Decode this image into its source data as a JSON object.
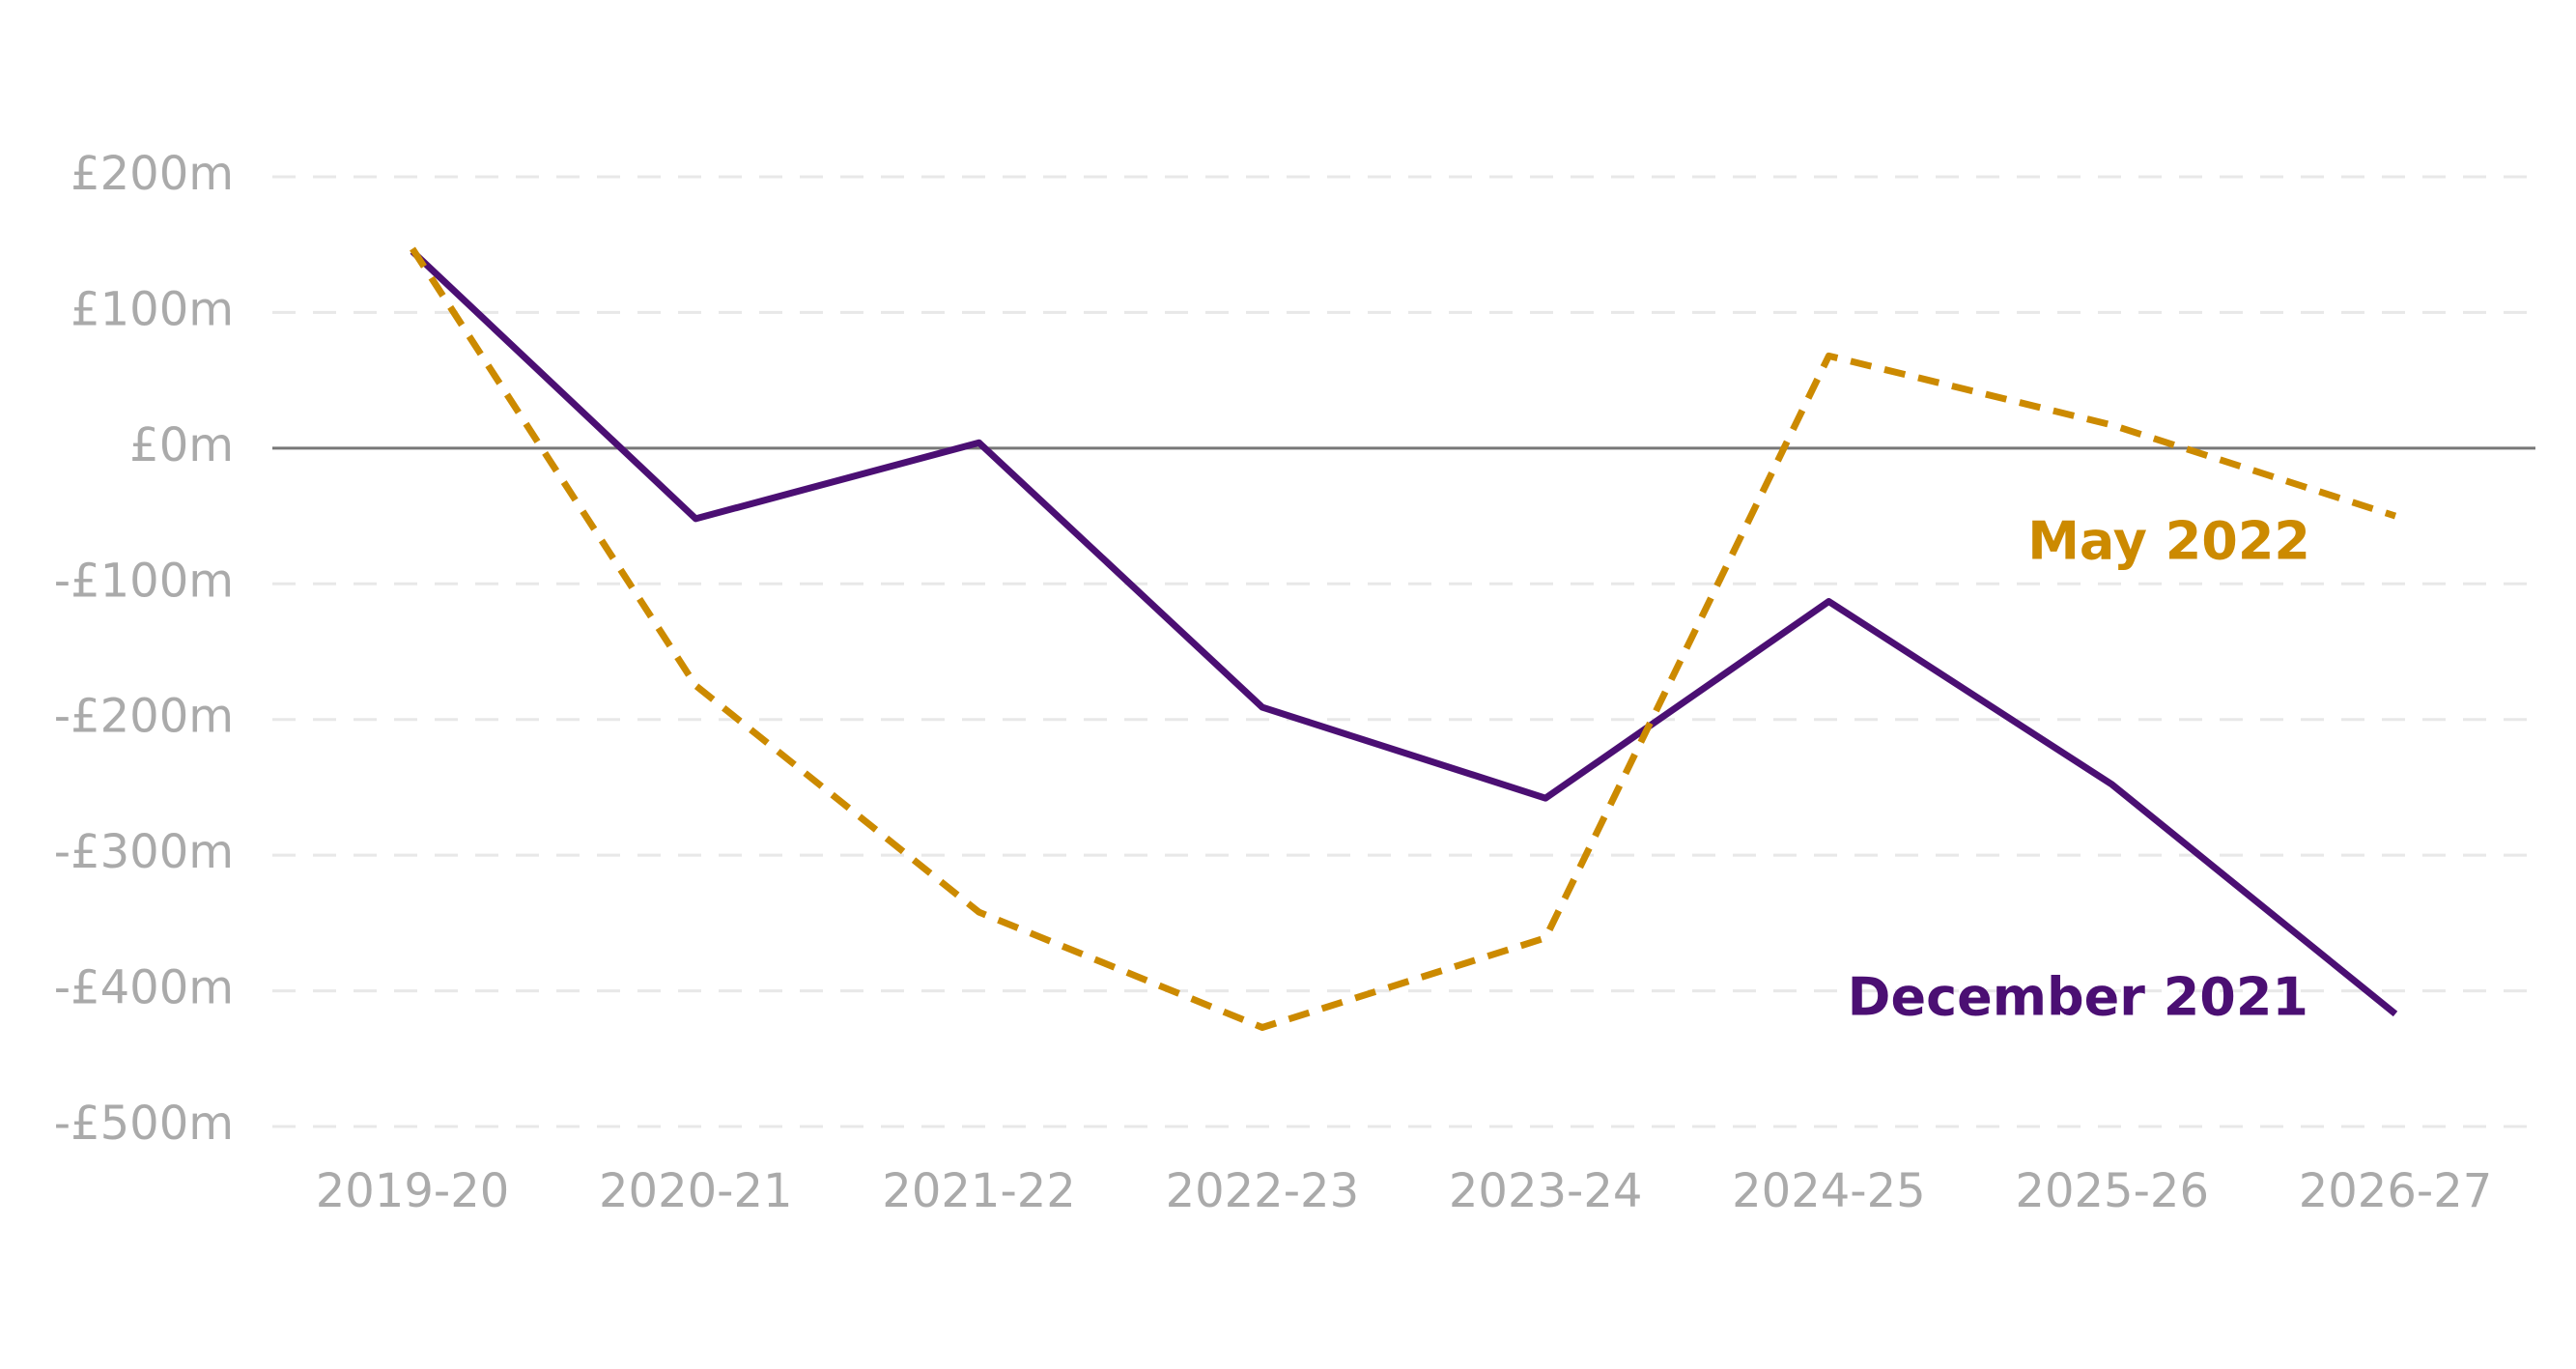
{
  "chart_data": {
    "type": "line",
    "categories": [
      "2019-20",
      "2020-21",
      "2021-22",
      "2022-23",
      "2023-24",
      "2024-25",
      "2025-26",
      "2026-27"
    ],
    "series": [
      {
        "name": "December 2021",
        "color": "#4b0f73",
        "dashed": false,
        "values": [
          145,
          -52,
          4,
          -191,
          -258,
          -113,
          -248,
          -417
        ]
      },
      {
        "name": "May 2022",
        "color": "#cc8a00",
        "dashed": true,
        "values": [
          147,
          -175,
          -342,
          -427,
          -361,
          68,
          17,
          -50
        ]
      }
    ],
    "ylim": [
      -500,
      200
    ],
    "yticks": [
      {
        "value": -500,
        "label": "-£500m"
      },
      {
        "value": -400,
        "label": "-£400m"
      },
      {
        "value": -300,
        "label": "-£300m"
      },
      {
        "value": -200,
        "label": "-£200m"
      },
      {
        "value": -100,
        "label": "-£100m"
      },
      {
        "value": 0,
        "label": "£0m"
      },
      {
        "value": 100,
        "label": "£100m"
      },
      {
        "value": 200,
        "label": "£200m"
      }
    ],
    "grid": true
  }
}
